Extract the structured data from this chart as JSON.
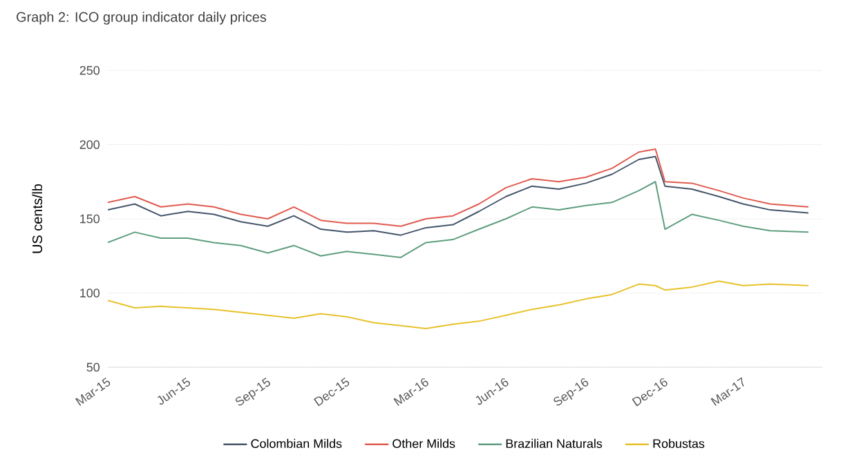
{
  "chart_data": {
    "type": "line",
    "title": "Graph 2: ICO group indicator daily prices",
    "ylabel": "US cents/lb",
    "x": [
      "2015-03-01",
      "2015-04-01",
      "2015-05-01",
      "2015-06-01",
      "2015-07-01",
      "2015-08-01",
      "2015-09-01",
      "2015-10-01",
      "2015-11-01",
      "2015-12-01",
      "2016-01-01",
      "2016-02-01",
      "2016-03-01",
      "2016-04-01",
      "2016-05-01",
      "2016-06-01",
      "2016-07-01",
      "2016-08-01",
      "2016-09-01",
      "2016-10-01",
      "2016-11-01",
      "2016-11-20",
      "2016-12-01",
      "2017-01-01",
      "2017-02-01",
      "2017-03-01",
      "2017-04-01",
      "2017-05-15"
    ],
    "series": [
      {
        "name": "Colombian Milds",
        "color": "#44546a",
        "values": [
          156,
          160,
          152,
          155,
          153,
          148,
          145,
          152,
          143,
          141,
          142,
          139,
          144,
          146,
          155,
          165,
          172,
          170,
          174,
          180,
          190,
          192,
          172,
          170,
          165,
          160,
          156,
          154
        ]
      },
      {
        "name": "Other Milds",
        "color": "#e05a4f",
        "values": [
          161,
          165,
          158,
          160,
          158,
          153,
          150,
          158,
          149,
          147,
          147,
          145,
          150,
          152,
          160,
          171,
          177,
          175,
          178,
          184,
          195,
          197,
          175,
          174,
          169,
          164,
          160,
          158
        ]
      },
      {
        "name": "Brazilian Naturals",
        "color": "#5e9e7e",
        "values": [
          134,
          141,
          137,
          137,
          134,
          132,
          127,
          132,
          125,
          128,
          126,
          124,
          134,
          136,
          143,
          150,
          158,
          156,
          159,
          161,
          169,
          175,
          143,
          153,
          149,
          145,
          142,
          141
        ]
      },
      {
        "name": "Robustas",
        "color": "#e8c12a",
        "values": [
          95,
          90,
          91,
          90,
          89,
          87,
          85,
          83,
          86,
          84,
          80,
          78,
          76,
          79,
          81,
          85,
          89,
          92,
          96,
          99,
          106,
          105,
          102,
          104,
          108,
          105,
          106,
          105
        ]
      }
    ],
    "xlim": [
      "2015-03-01",
      "2017-05-31"
    ],
    "xticks": [
      {
        "value": "2015-03-01",
        "label": "Mar-15"
      },
      {
        "value": "2015-06-01",
        "label": "Jun-15"
      },
      {
        "value": "2015-09-01",
        "label": "Sep-15"
      },
      {
        "value": "2015-12-01",
        "label": "Dec-15"
      },
      {
        "value": "2016-03-01",
        "label": "Mar-16"
      },
      {
        "value": "2016-06-01",
        "label": "Jun-16"
      },
      {
        "value": "2016-09-01",
        "label": "Sep-16"
      },
      {
        "value": "2016-12-01",
        "label": "Dec-16"
      },
      {
        "value": "2017-03-01",
        "label": "Mar-17"
      }
    ],
    "ylim": [
      50,
      250
    ],
    "yticks": [
      50,
      100,
      150,
      200,
      250
    ],
    "grid": "y",
    "legend": "bottom",
    "marker": "none",
    "line_style": "solid"
  }
}
